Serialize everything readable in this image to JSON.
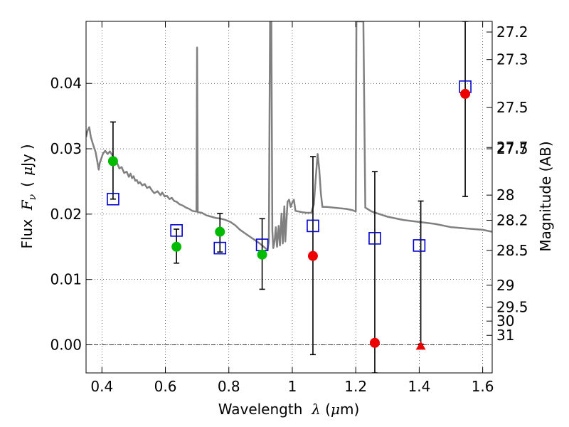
{
  "chart_data": {
    "type": "scatter",
    "xlabel": {
      "prefix": "Wavelength  ",
      "symbol": "λ",
      "suffix": " (μm)",
      "unit_prefix": "μ",
      "unit_rest": "m"
    },
    "ylabel": {
      "prefix": "Flux  ",
      "symbol": "F",
      "subscript": "ν",
      "unit_open": "(",
      "unit_mu": "μ",
      "unit_rest": "Jy",
      "unit_close": ")"
    },
    "y2label": "Magnitude (AB)",
    "xlim": [
      0.35,
      1.63
    ],
    "ylim": [
      -0.0043,
      0.0495
    ],
    "grid": true,
    "x_ticks": [
      {
        "value": 0.4,
        "label": "0.4"
      },
      {
        "value": 0.6,
        "label": "0.6"
      },
      {
        "value": 0.8,
        "label": "0.8"
      },
      {
        "value": 1.0,
        "label": "1"
      },
      {
        "value": 1.2,
        "label": "1.2"
      },
      {
        "value": 1.4,
        "label": "1.4"
      },
      {
        "value": 1.6,
        "label": "1.6"
      }
    ],
    "y_ticks": [
      {
        "value": 0.0,
        "label": "0.00"
      },
      {
        "value": 0.01,
        "label": "0.01"
      },
      {
        "value": 0.02,
        "label": "0.02"
      },
      {
        "value": 0.03,
        "label": "0.03"
      },
      {
        "value": 0.04,
        "label": "0.04"
      }
    ],
    "magnitude_ticks": [
      {
        "mag": 27.2,
        "label": "27.2"
      },
      {
        "mag": 27.3,
        "label": "27.3"
      },
      {
        "mag": 27.5,
        "label": "27.5"
      },
      {
        "mag": 27.5,
        "label": "27.5",
        "flux": 0.03
      },
      {
        "mag": 27.7,
        "label": "27.7"
      },
      {
        "mag": 28.0,
        "label": "28"
      },
      {
        "mag": 28.2,
        "label": "28.2"
      },
      {
        "mag": 28.5,
        "label": "28.5"
      },
      {
        "mag": 29.0,
        "label": "29"
      },
      {
        "mag": 29.5,
        "label": "29.5"
      },
      {
        "mag": 30.0,
        "label": "30"
      },
      {
        "mag": 31.0,
        "label": "31"
      }
    ],
    "sed_model": {
      "color": "#808080",
      "points": [
        [
          0.35,
          0.0318
        ],
        [
          0.355,
          0.0328
        ],
        [
          0.36,
          0.0333
        ],
        [
          0.365,
          0.0318
        ],
        [
          0.37,
          0.031
        ],
        [
          0.375,
          0.0302
        ],
        [
          0.38,
          0.0295
        ],
        [
          0.385,
          0.0282
        ],
        [
          0.39,
          0.0268
        ],
        [
          0.393,
          0.0278
        ],
        [
          0.398,
          0.0285
        ],
        [
          0.403,
          0.0292
        ],
        [
          0.41,
          0.0297
        ],
        [
          0.418,
          0.0292
        ],
        [
          0.425,
          0.0296
        ],
        [
          0.433,
          0.029
        ],
        [
          0.44,
          0.0283
        ],
        [
          0.448,
          0.0278
        ],
        [
          0.455,
          0.027
        ],
        [
          0.462,
          0.0272
        ],
        [
          0.47,
          0.0263
        ],
        [
          0.478,
          0.0265
        ],
        [
          0.485,
          0.0257
        ],
        [
          0.49,
          0.0262
        ],
        [
          0.495,
          0.0255
        ],
        [
          0.5,
          0.0258
        ],
        [
          0.505,
          0.0251
        ],
        [
          0.51,
          0.0252
        ],
        [
          0.515,
          0.0247
        ],
        [
          0.52,
          0.0249
        ],
        [
          0.527,
          0.0244
        ],
        [
          0.535,
          0.0246
        ],
        [
          0.542,
          0.024
        ],
        [
          0.55,
          0.0242
        ],
        [
          0.558,
          0.0236
        ],
        [
          0.565,
          0.0232
        ],
        [
          0.575,
          0.0235
        ],
        [
          0.585,
          0.0229
        ],
        [
          0.59,
          0.0233
        ],
        [
          0.598,
          0.0227
        ],
        [
          0.605,
          0.0228
        ],
        [
          0.613,
          0.0223
        ],
        [
          0.62,
          0.0225
        ],
        [
          0.628,
          0.022
        ],
        [
          0.635,
          0.0219
        ],
        [
          0.645,
          0.0215
        ],
        [
          0.655,
          0.0213
        ],
        [
          0.665,
          0.021
        ],
        [
          0.675,
          0.0208
        ],
        [
          0.685,
          0.0205
        ],
        [
          0.695,
          0.0204
        ],
        [
          0.698,
          0.0204
        ],
        [
          0.7,
          0.0455
        ],
        [
          0.702,
          0.0203
        ],
        [
          0.715,
          0.0202
        ],
        [
          0.73,
          0.0198
        ],
        [
          0.745,
          0.0196
        ],
        [
          0.76,
          0.0194
        ],
        [
          0.775,
          0.0193
        ],
        [
          0.79,
          0.0191
        ],
        [
          0.805,
          0.0188
        ],
        [
          0.82,
          0.0183
        ],
        [
          0.835,
          0.0176
        ],
        [
          0.85,
          0.0171
        ],
        [
          0.865,
          0.0166
        ],
        [
          0.88,
          0.0161
        ],
        [
          0.895,
          0.0156
        ],
        [
          0.905,
          0.0152
        ],
        [
          0.915,
          0.0148
        ],
        [
          0.922,
          0.0145
        ],
        [
          0.926,
          0.0158
        ],
        [
          0.93,
          0.0495
        ],
        [
          0.934,
          0.0495
        ],
        [
          0.937,
          0.0175
        ],
        [
          0.94,
          0.0148
        ],
        [
          0.944,
          0.0158
        ],
        [
          0.948,
          0.018
        ],
        [
          0.952,
          0.015
        ],
        [
          0.957,
          0.0182
        ],
        [
          0.961,
          0.0152
        ],
        [
          0.966,
          0.0201
        ],
        [
          0.97,
          0.0155
        ],
        [
          0.975,
          0.0212
        ],
        [
          0.978,
          0.0158
        ],
        [
          0.985,
          0.0219
        ],
        [
          0.99,
          0.0222
        ],
        [
          0.995,
          0.0211
        ],
        [
          1.0,
          0.0218
        ],
        [
          1.005,
          0.0222
        ],
        [
          1.01,
          0.0205
        ],
        [
          1.02,
          0.0204
        ],
        [
          1.03,
          0.0203
        ],
        [
          1.045,
          0.0202
        ],
        [
          1.06,
          0.0202
        ],
        [
          1.068,
          0.0215
        ],
        [
          1.075,
          0.0262
        ],
        [
          1.08,
          0.0292
        ],
        [
          1.085,
          0.0268
        ],
        [
          1.09,
          0.0232
        ],
        [
          1.095,
          0.0211
        ],
        [
          1.11,
          0.0211
        ],
        [
          1.13,
          0.021
        ],
        [
          1.15,
          0.0209
        ],
        [
          1.17,
          0.0208
        ],
        [
          1.19,
          0.0206
        ],
        [
          1.2,
          0.0204
        ],
        [
          1.202,
          0.0495
        ],
        [
          1.224,
          0.0495
        ],
        [
          1.23,
          0.021
        ],
        [
          1.25,
          0.0204
        ],
        [
          1.3,
          0.0196
        ],
        [
          1.35,
          0.0191
        ],
        [
          1.4,
          0.0188
        ],
        [
          1.45,
          0.0185
        ],
        [
          1.5,
          0.018
        ],
        [
          1.55,
          0.0178
        ],
        [
          1.6,
          0.0176
        ],
        [
          1.63,
          0.0173
        ]
      ]
    },
    "series": [
      {
        "marker": "square",
        "color": "#0000cc",
        "points": [
          [
            0.435,
            0.0223
          ],
          [
            0.635,
            0.0175
          ],
          [
            0.772,
            0.0148
          ],
          [
            0.905,
            0.0153
          ],
          [
            1.065,
            0.0182
          ],
          [
            1.26,
            0.0163
          ],
          [
            1.4,
            0.0152
          ],
          [
            1.545,
            0.0395
          ]
        ]
      },
      {
        "marker": "circle",
        "color": "#00bb00",
        "points": [
          [
            0.435,
            0.0281
          ],
          [
            0.635,
            0.015
          ],
          [
            0.772,
            0.0173
          ],
          [
            0.905,
            0.0138
          ]
        ]
      },
      {
        "marker": "circle",
        "color": "#ee0000",
        "points": [
          [
            1.065,
            0.0136
          ],
          [
            1.26,
            0.0003
          ],
          [
            1.545,
            0.0384
          ]
        ]
      },
      {
        "marker": "triangle",
        "color": "#ee0000",
        "points": [
          [
            1.405,
            -0.0001
          ]
        ]
      }
    ],
    "error_bars": [
      {
        "x": 0.435,
        "low": 0.0223,
        "high": 0.0341
      },
      {
        "x": 0.635,
        "low": 0.0125,
        "high": 0.0177
      },
      {
        "x": 0.772,
        "low": 0.0142,
        "high": 0.0201
      },
      {
        "x": 0.905,
        "low": 0.0085,
        "high": 0.0193
      },
      {
        "x": 1.065,
        "low": -0.0015,
        "high": 0.0288
      },
      {
        "x": 1.26,
        "low": -0.0043,
        "high": 0.0265
      },
      {
        "x": 1.405,
        "low": 0.0001,
        "high": 0.022
      },
      {
        "x": 1.545,
        "low": 0.0227,
        "high": 0.0495
      }
    ]
  }
}
